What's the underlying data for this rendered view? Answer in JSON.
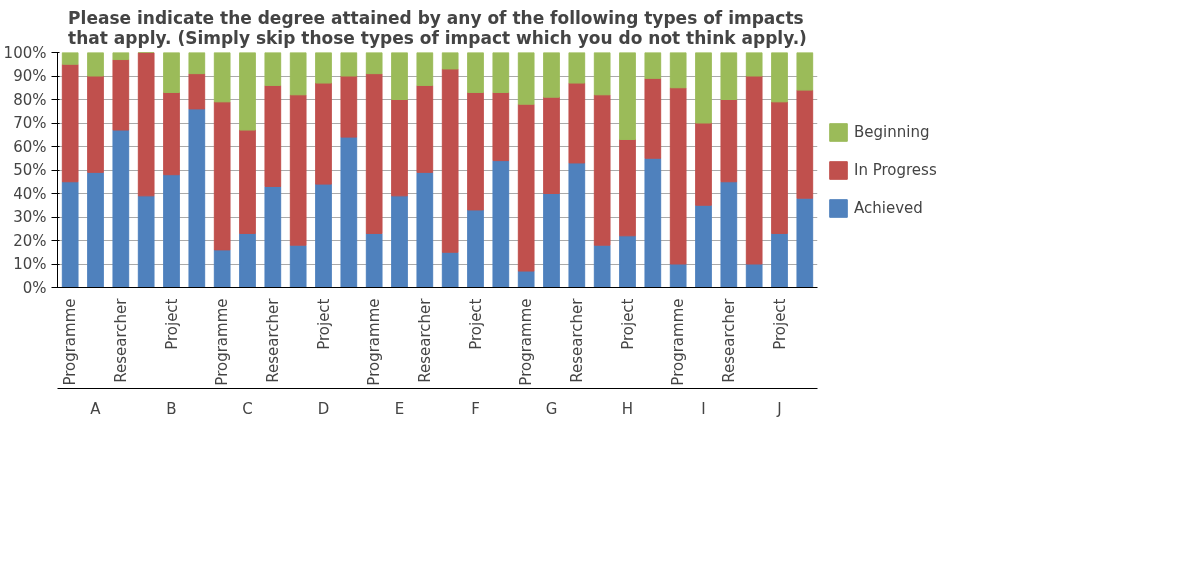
{
  "chart_data": {
    "type": "bar",
    "stacked": true,
    "title": "Please indicate the degree attained by any of the following types of impacts that apply. (Simply skip those types of impact which you do not think apply.)",
    "categories": [
      "Programme",
      null,
      "Researcher",
      null,
      "Project",
      null,
      "Programme",
      null,
      "Researcher",
      null,
      "Project",
      null,
      "Programme",
      null,
      "Researcher",
      null,
      "Project",
      null,
      "Programme",
      null,
      "Researcher",
      null,
      "Project",
      null,
      "Programme",
      null,
      "Researcher",
      null,
      "Project",
      null
    ],
    "annotations": [
      "A",
      "B",
      "C",
      "D",
      "E",
      "F",
      "G",
      "H",
      "I",
      "J"
    ],
    "series": [
      {
        "name": "Achieved",
        "color": "#4f81bd",
        "values": [
          45,
          49,
          67,
          39,
          48,
          76,
          16,
          23,
          43,
          18,
          44,
          64,
          23,
          39,
          49,
          15,
          33,
          54,
          7,
          40,
          53,
          18,
          22,
          55,
          10,
          35,
          45,
          10,
          23,
          38
        ]
      },
      {
        "name": "In Progress",
        "color": "#c0504d",
        "values": [
          50,
          41,
          30,
          61,
          35,
          15,
          63,
          44,
          43,
          64,
          43,
          26,
          68,
          41,
          37,
          78,
          50,
          29,
          71,
          41,
          34,
          64,
          41,
          34,
          75,
          35,
          35,
          80,
          56,
          46
        ]
      },
      {
        "name": "Beginning",
        "color": "#9bbb59",
        "values": [
          5,
          10,
          3,
          0,
          17,
          9,
          21,
          33,
          14,
          18,
          13,
          10,
          9,
          20,
          14,
          7,
          17,
          17,
          22,
          19,
          13,
          18,
          37,
          11,
          15,
          30,
          20,
          10,
          21,
          16
        ]
      }
    ],
    "ylim": [
      0,
      100
    ],
    "yticks": [
      {
        "value": 0,
        "label": "0%"
      },
      {
        "value": 10,
        "label": "10%"
      },
      {
        "value": 20,
        "label": "20%"
      },
      {
        "value": 30,
        "label": "30%"
      },
      {
        "value": 40,
        "label": "40%"
      },
      {
        "value": 50,
        "label": "50%"
      },
      {
        "value": 60,
        "label": "60%"
      },
      {
        "value": 70,
        "label": "70%"
      },
      {
        "value": 80,
        "label": "80%"
      },
      {
        "value": 90,
        "label": "90%"
      },
      {
        "value": 100,
        "label": "100%"
      }
    ],
    "grid": "y",
    "legend": "right"
  }
}
